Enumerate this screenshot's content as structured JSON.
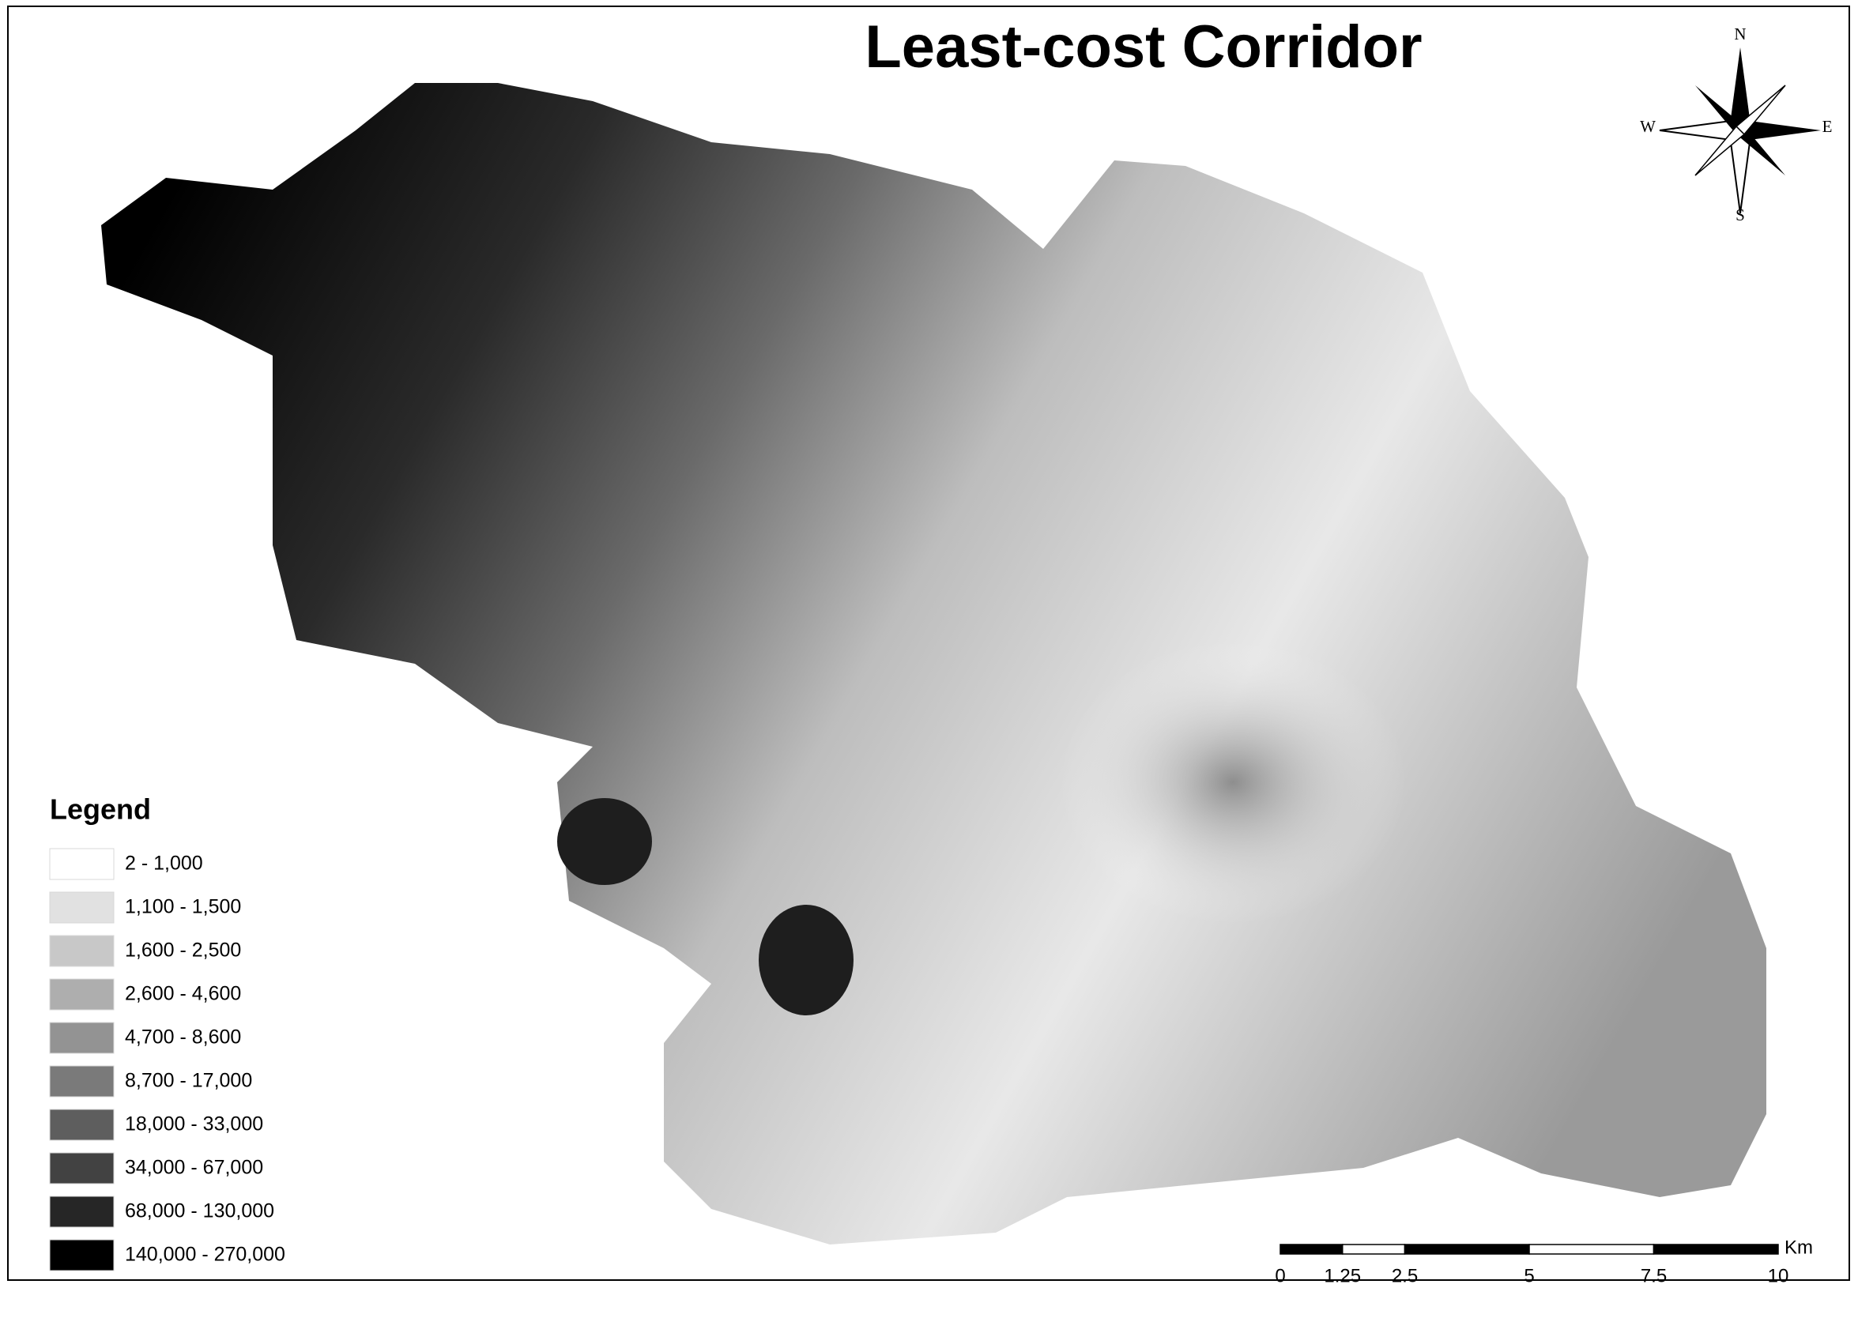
{
  "title": "Least-cost Corridor",
  "compass": {
    "north": "N",
    "south": "S",
    "east": "E",
    "west": "W"
  },
  "legend": {
    "title": "Legend",
    "items": [
      {
        "label": "2 - 1,000",
        "color": "#ffffff"
      },
      {
        "label": "1,100 - 1,500",
        "color": "#e1e1e1"
      },
      {
        "label": "1,600 - 2,500",
        "color": "#c8c8c8"
      },
      {
        "label": "2,600 - 4,600",
        "color": "#aeaeae"
      },
      {
        "label": "4,700 - 8,600",
        "color": "#939393"
      },
      {
        "label": "8,700 - 17,000",
        "color": "#7a7a7a"
      },
      {
        "label": "18,000 - 33,000",
        "color": "#5e5e5e"
      },
      {
        "label": "34,000 - 67,000",
        "color": "#424242"
      },
      {
        "label": "68,000 - 130,000",
        "color": "#262626"
      },
      {
        "label": "140,000 - 270,000",
        "color": "#000000"
      }
    ]
  },
  "scale_bar": {
    "ticks": [
      0,
      1.25,
      2.5,
      5,
      7.5,
      10
    ],
    "unit": "Km"
  }
}
